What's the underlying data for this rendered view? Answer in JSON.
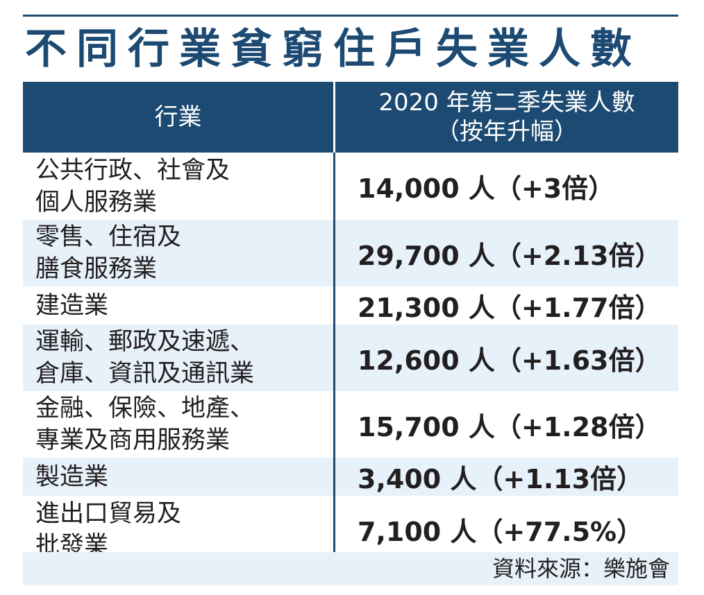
{
  "title": "不同行業貧窮住戶失業人數",
  "header": {
    "industry": "行業",
    "value_line1": "2020 年第二季失業人數",
    "value_line2": "（按年升幅）"
  },
  "rows": [
    {
      "industry_l1": "公共行政、社會及",
      "industry_l2": "個人服務業",
      "value": "14,000 人（+3倍）"
    },
    {
      "industry_l1": "零售、住宿及",
      "industry_l2": "膳食服務業",
      "value": "29,700 人（+2.13倍）"
    },
    {
      "industry_l1": "建造業",
      "industry_l2": "",
      "value": "21,300 人（+1.77倍）"
    },
    {
      "industry_l1": "運輸、郵政及速遞、",
      "industry_l2": "倉庫、資訊及通訊業",
      "value": "12,600 人（+1.63倍）"
    },
    {
      "industry_l1": "金融、保險、地產、",
      "industry_l2": "專業及商用服務業",
      "value": "15,700 人（+1.28倍）"
    },
    {
      "industry_l1": "製造業",
      "industry_l2": "",
      "value": "3,400 人（+1.13倍）"
    },
    {
      "industry_l1": "進出口貿易及",
      "industry_l2": "批發業",
      "value": "7,100 人（+77.5%）"
    }
  ],
  "source": "資料來源：樂施會",
  "colors": {
    "header_bg": "#1c4a72",
    "row_shade": "#e6f1fa",
    "title": "#1c4a72"
  }
}
